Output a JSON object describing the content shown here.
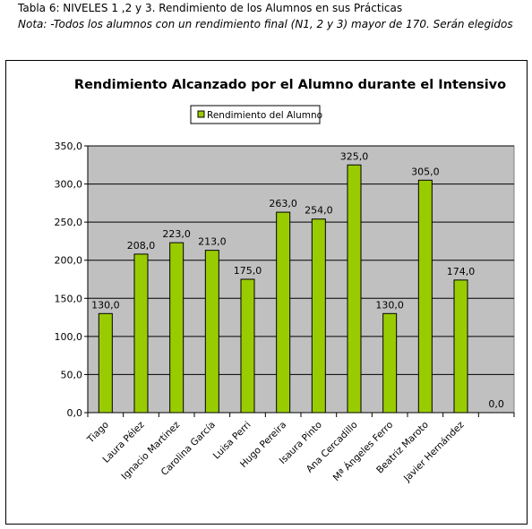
{
  "caption": {
    "line1": "Tabla 6: NIVELES 1 ,2 y 3. Rendimiento de los Alumnos en sus Prácticas",
    "line2": "Nota: -Todos los alumnos con un rendimiento final (N1, 2 y 3) mayor de 170. Serán elegidos"
  },
  "chart_data": {
    "type": "bar",
    "title": "Rendimiento Alcanzado por el Alumno durante el Intensivo",
    "legend": {
      "label": "Rendimiento del Alumno",
      "placement": "top-left"
    },
    "categories": [
      "Tiago",
      "Laura Pélez",
      "Ignacio Martinez",
      "Carolina García",
      "Luisa Perri",
      "Hugo Pereira",
      "Isaura Pinto",
      "Ana Cercadillo",
      "Mª Ángeles Ferro",
      "Beatriz Maroto",
      "Javier Hernández",
      ""
    ],
    "values": [
      130.0,
      208.0,
      223.0,
      213.0,
      175.0,
      263.0,
      254.0,
      325.0,
      130.0,
      305.0,
      174.0,
      0.0
    ],
    "value_labels": [
      "130,0",
      "208,0",
      "223,0",
      "213,0",
      "175,0",
      "263,0",
      "254,0",
      "325,0",
      "130,0",
      "305,0",
      "174,0",
      "0,0"
    ],
    "yticks": [
      0,
      50,
      100,
      150,
      200,
      250,
      300,
      350
    ],
    "ytick_labels": [
      "0,0",
      "50,0",
      "100,0",
      "150,0",
      "200,0",
      "250,0",
      "300,0",
      "350,0"
    ],
    "ylim": [
      0,
      350
    ],
    "grid": true,
    "colors": {
      "bar": "#99cc00",
      "plot_background": "#c0c0c0"
    }
  }
}
